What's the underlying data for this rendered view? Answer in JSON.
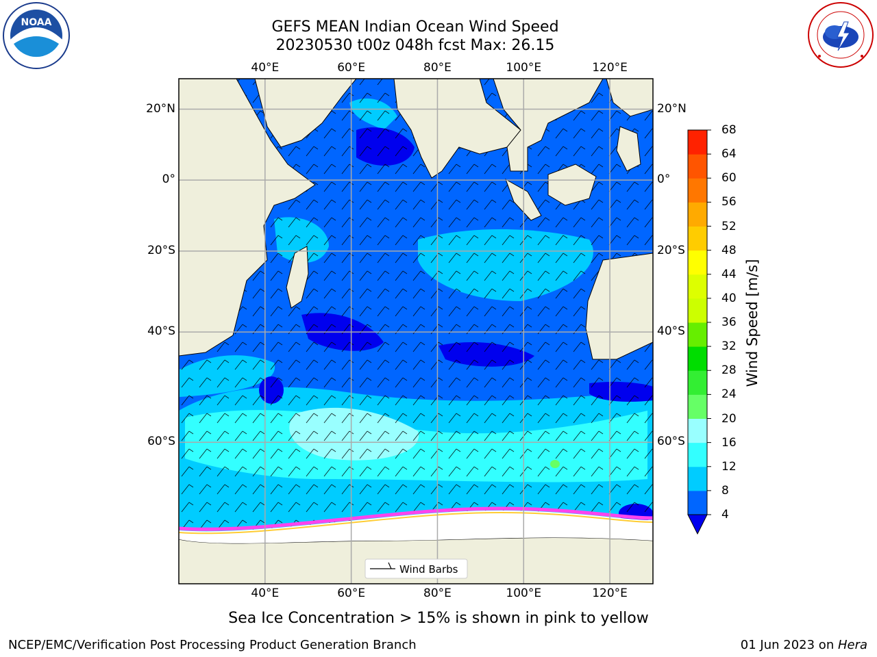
{
  "title_line1": "GEFS MEAN Indian Ocean Wind Speed",
  "title_line2": "20230530 t00z 048h fcst   Max: 26.15",
  "lon_ticks": [
    "40°E",
    "60°E",
    "80°E",
    "100°E",
    "120°E"
  ],
  "lat_ticks": [
    "20°N",
    "0°",
    "20°S",
    "40°S",
    "60°S"
  ],
  "lon_values": [
    40,
    60,
    80,
    100,
    120
  ],
  "lat_values": [
    20,
    0,
    -20,
    -40,
    -60
  ],
  "map_extent": {
    "lon_min": 20,
    "lon_max": 130,
    "lat_min": -75,
    "lat_max": 28
  },
  "legend_label": "Wind Barbs",
  "colorbar": {
    "title": "Wind Speed [m/s]",
    "ticks": [
      "4",
      "8",
      "12",
      "16",
      "20",
      "24",
      "28",
      "32",
      "36",
      "40",
      "44",
      "48",
      "52",
      "56",
      "60",
      "64",
      "68"
    ],
    "colors": [
      "#0066ff",
      "#00ccff",
      "#33ffff",
      "#99ffff",
      "#66ff66",
      "#33ee33",
      "#00dd00",
      "#66ee00",
      "#ccff00",
      "#ddff00",
      "#ffff00",
      "#ffcc00",
      "#ffaa00",
      "#ff7700",
      "#ff5500",
      "#ff2200",
      "#ff0000"
    ],
    "under_color": "#0000ee"
  },
  "ice_caption": "Sea Ice Concentration > 15% is shown in pink to yellow",
  "footer_left": "NCEP/EMC/Verification Post Processing Product Generation Branch",
  "footer_date": "01 Jun 2023 on ",
  "footer_host": "Hera",
  "logos": {
    "left": {
      "name": "noaa-logo",
      "text": "NOAA",
      "ring_text": "NATIONAL OCEANIC AND ATMOSPHERIC ADMINISTRATION · U.S. DEPARTMENT OF COMMERCE"
    },
    "right": {
      "name": "nws-logo",
      "ring_text": "NATIONAL WEATHER SERVICE"
    }
  },
  "colors": {
    "land": "#efefdc",
    "ocean_low": "#0000ee",
    "ocean_mid": "#0066ff",
    "ocean_high": "#00ccff",
    "ice": "#ffffff",
    "ice_edge": "#ff44ee"
  }
}
